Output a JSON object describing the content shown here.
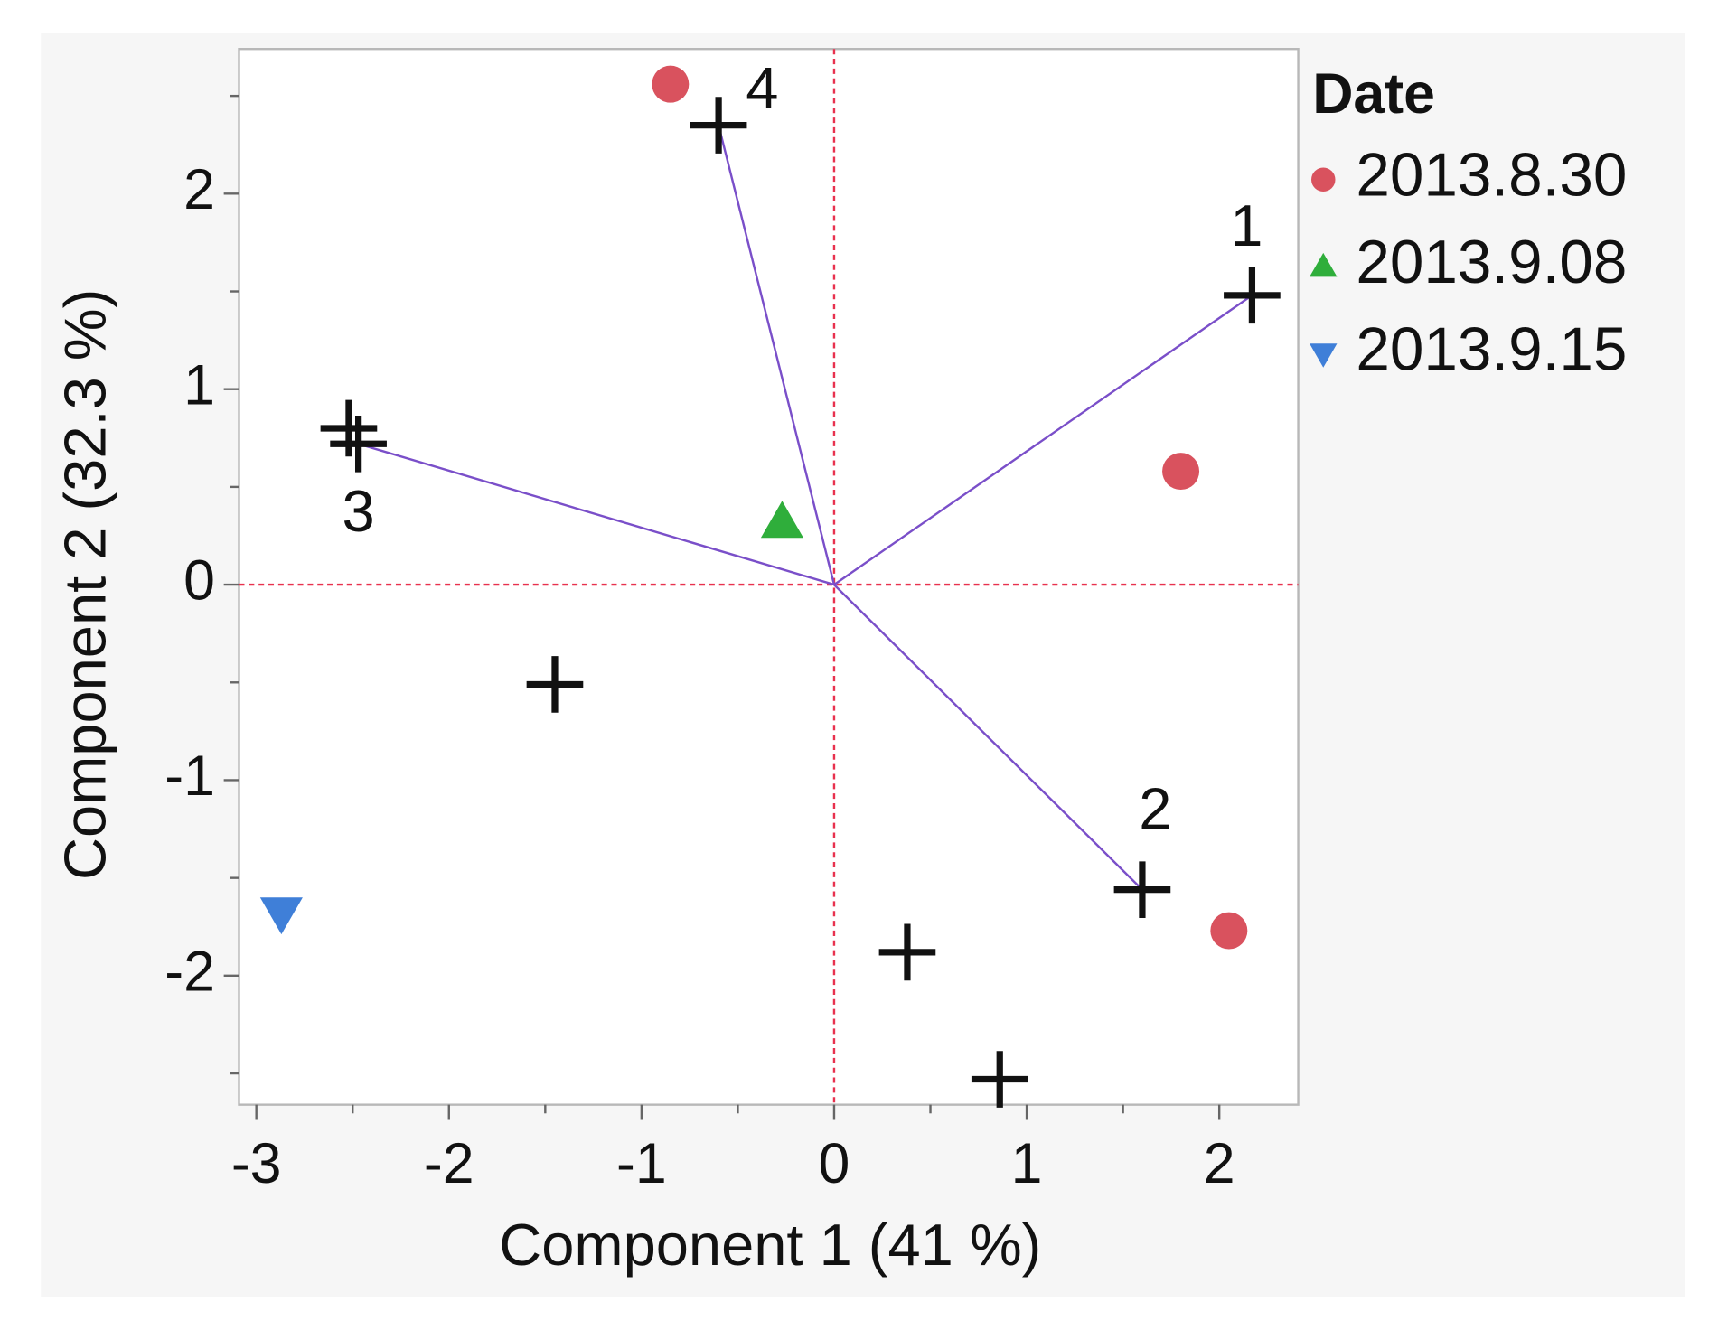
{
  "chart_data": {
    "type": "scatter",
    "xlabel": "Component 1  (41 %)",
    "ylabel": "Component 2  (32.3 %)",
    "legend_title": "Date",
    "xlim": [
      -3.09,
      2.41
    ],
    "ylim": [
      -2.66,
      2.74
    ],
    "xticks": [
      -3,
      -2,
      -1,
      0,
      1,
      2
    ],
    "yticks": [
      -2,
      -1,
      0,
      1,
      2
    ],
    "xminorticks": [
      -2.5,
      -1.5,
      -0.5,
      0.5,
      1.5
    ],
    "yminorticks": [
      -2.5,
      -1.5,
      -0.5,
      0.5,
      1.5,
      2.5
    ],
    "reference_line_color": "#e8314e",
    "series": [
      {
        "name": "2013.8.30",
        "color": "#d9525e",
        "marker": "circle",
        "x": [
          -0.85,
          1.8,
          2.05
        ],
        "y": [
          2.56,
          0.58,
          -1.77
        ]
      },
      {
        "name": "2013.9.08",
        "color": "#2fae3b",
        "marker": "triangle-up",
        "x": [
          -0.27
        ],
        "y": [
          0.32
        ]
      },
      {
        "name": "2013.9.15",
        "color": "#3f7fd8",
        "marker": "triangle-down",
        "x": [
          -2.87
        ],
        "y": [
          -1.68
        ]
      }
    ],
    "plus_points": {
      "color": "#111111",
      "x": [
        -2.52,
        -1.45,
        0.38,
        0.86
      ],
      "y": [
        0.8,
        -0.51,
        -1.88,
        -2.53
      ]
    },
    "vectors": {
      "color": "#7a4fc9",
      "labels": [
        "1",
        "2",
        "3",
        "4"
      ],
      "x": [
        2.17,
        1.6,
        -2.47,
        -0.6
      ],
      "y": [
        1.48,
        -1.56,
        0.72,
        2.35
      ]
    }
  }
}
